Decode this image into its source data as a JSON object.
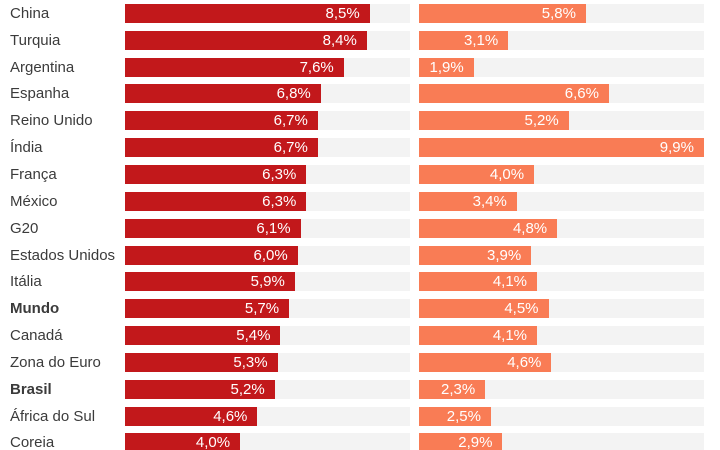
{
  "chart_data": {
    "type": "bar",
    "orientation": "horizontal",
    "title": "",
    "categories": [
      "China",
      "Turquia",
      "Argentina",
      "Espanha",
      "Reino Unido",
      "Índia",
      "França",
      "México",
      "G20",
      "Estados Unidos",
      "Itália",
      "Mundo",
      "Canadá",
      "Zona do Euro",
      "Brasil",
      "África do Sul",
      "Coreia"
    ],
    "bold_categories": [
      "Mundo",
      "Brasil"
    ],
    "series": [
      {
        "name": "left-series",
        "color": "#c2181b",
        "values": [
          8.5,
          8.4,
          7.6,
          6.8,
          6.7,
          6.7,
          6.3,
          6.3,
          6.1,
          6.0,
          5.9,
          5.7,
          5.4,
          5.3,
          5.2,
          4.6,
          4.0
        ],
        "labels": [
          "8,5%",
          "8,4%",
          "7,6%",
          "6,8%",
          "6,7%",
          "6,7%",
          "6,3%",
          "6,3%",
          "6,1%",
          "6,0%",
          "5,9%",
          "5,7%",
          "5,4%",
          "5,3%",
          "5,2%",
          "4,6%",
          "4,0%"
        ]
      },
      {
        "name": "right-series",
        "color": "#f97c55",
        "values": [
          5.8,
          3.1,
          1.9,
          6.6,
          5.2,
          9.9,
          4.0,
          3.4,
          4.8,
          3.9,
          4.1,
          4.5,
          4.1,
          4.6,
          2.3,
          2.5,
          2.9
        ],
        "labels": [
          "5,8%",
          "3,1%",
          "1,9%",
          "6,6%",
          "5,2%",
          "9,9%",
          "4,0%",
          "3,4%",
          "4,8%",
          "3,9%",
          "4,1%",
          "4,5%",
          "4,1%",
          "4,6%",
          "2,3%",
          "2,5%",
          "2,9%"
        ]
      }
    ],
    "xlim": [
      0,
      9.9
    ],
    "grid": false,
    "legend": "none",
    "value_label_position": "inside-end",
    "track_color": "#f3f3f3"
  },
  "colors": {
    "background": "#ffffff",
    "label_text": "#3b3b3b",
    "value_text": "#ffffff"
  }
}
